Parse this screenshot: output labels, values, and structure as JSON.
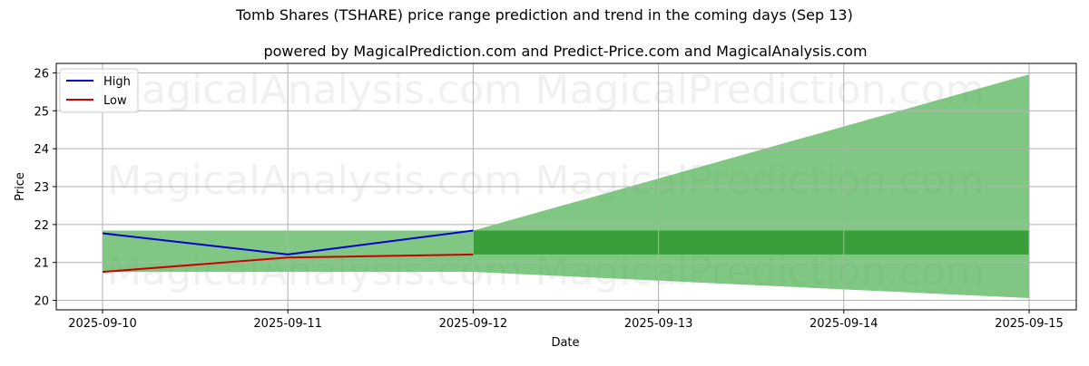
{
  "chart_data": {
    "type": "line",
    "title": "Tomb Shares (TSHARE) price range prediction and trend in the coming days (Sep 13)",
    "subtitle": "powered by MagicalPrediction.com and Predict-Price.com and MagicalAnalysis.com",
    "xlabel": "Date",
    "ylabel": "Price",
    "x": [
      "2025-09-10",
      "2025-09-11",
      "2025-09-12",
      "2025-09-13",
      "2025-09-14",
      "2025-09-15"
    ],
    "ylim": [
      19.75,
      26.25
    ],
    "yticks": [
      20,
      21,
      22,
      23,
      24,
      25,
      26
    ],
    "grid": true,
    "legend": "top-left",
    "series": [
      {
        "name": "High",
        "color": "#0000cc",
        "x": [
          "2025-09-10",
          "2025-09-11",
          "2025-09-12"
        ],
        "values": [
          21.77,
          21.21,
          21.84
        ]
      },
      {
        "name": "Low",
        "color": "#cc0000",
        "x": [
          "2025-09-10",
          "2025-09-11",
          "2025-09-12"
        ],
        "values": [
          20.75,
          21.13,
          21.21
        ]
      }
    ],
    "bands": [
      {
        "color": "#4caf50",
        "opacity": 0.7,
        "x": [
          "2025-09-10",
          "2025-09-12"
        ],
        "upper": [
          21.84,
          21.84
        ],
        "lower": [
          20.75,
          20.75
        ]
      },
      {
        "color": "#4caf50",
        "opacity": 0.7,
        "x": [
          "2025-09-12",
          "2025-09-15"
        ],
        "upper": [
          21.84,
          25.96
        ],
        "lower": [
          20.75,
          20.06
        ]
      },
      {
        "color": "#3a9e3a",
        "opacity": 1.0,
        "x": [
          "2025-09-12",
          "2025-09-15"
        ],
        "upper": [
          21.84,
          21.84
        ],
        "lower": [
          21.21,
          21.21
        ]
      }
    ],
    "watermarks": [
      "MagicalAnalysis.com",
      "MagicalPrediction.com",
      "MagicalAnalysis.com",
      "MagicalPrediction.com",
      "MagicalAnalysis.com",
      "MagicalPrediction.com"
    ]
  }
}
